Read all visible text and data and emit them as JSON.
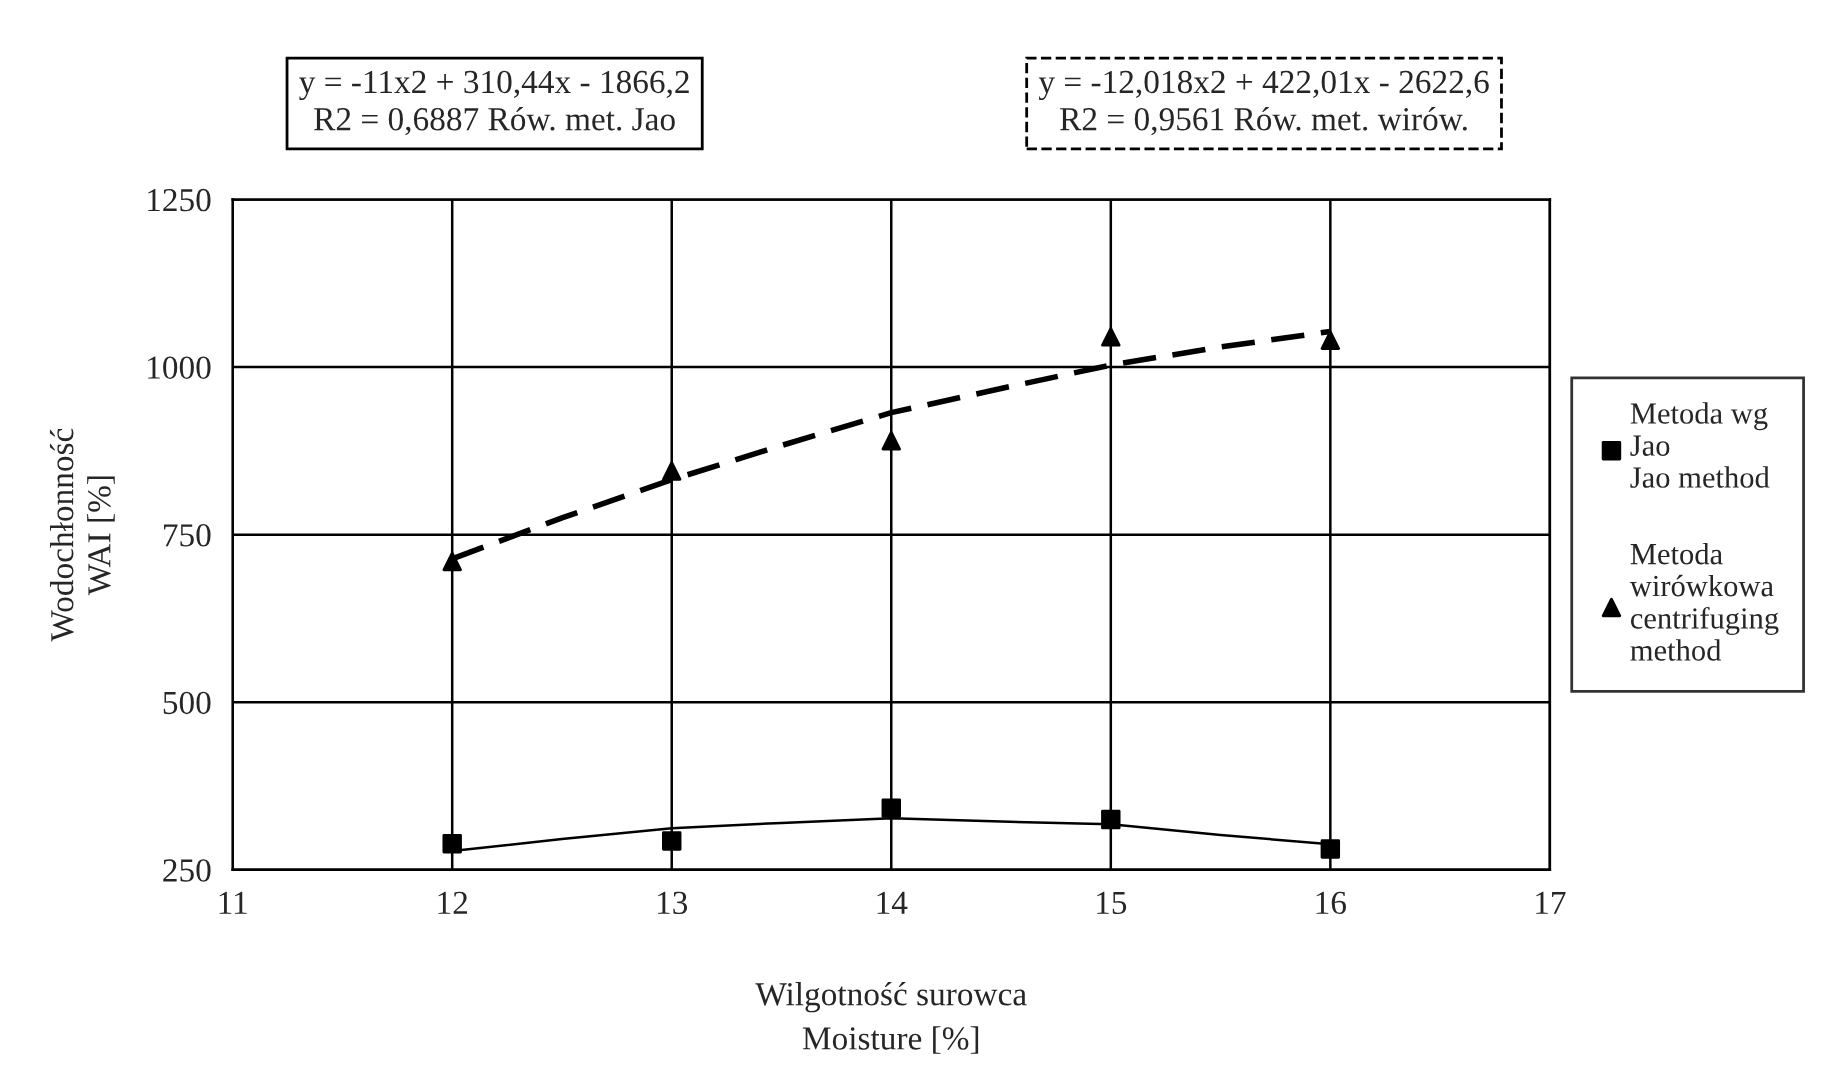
{
  "chart_data": {
    "type": "scatter",
    "xlabel": "Wilgotność surowca\nMoisture [%]",
    "ylabel": "Wodochłonność\nWAI [%]",
    "x": [
      12,
      13,
      14,
      15,
      16
    ],
    "series": [
      {
        "name": "Metoda wg\nJao\nJao method",
        "color": "#000000",
        "marker": "square",
        "values": [
          289,
          293,
          342,
          325,
          281
        ]
      },
      {
        "name": "Metoda\nwirówkowa\ncentrifuging\nmethod",
        "color": "#000000",
        "marker": "triangle",
        "values": [
          710,
          845,
          890,
          1045,
          1040
        ]
      },
      {
        "type": "line",
        "color": "#000000",
        "line_style": "solid",
        "marker": "none",
        "x": [
          12,
          12.5,
          13,
          13.5,
          14,
          14.5,
          15,
          15.5,
          16
        ],
        "values": [
          278,
          296,
          312,
          320,
          327,
          322,
          318,
          302,
          288
        ]
      },
      {
        "type": "line",
        "color": "#000000",
        "line_style": "dashed",
        "marker": "none",
        "x": [
          12,
          12.5,
          13,
          13.5,
          14,
          14.5,
          15,
          15.5,
          16
        ],
        "values": [
          714,
          775,
          832,
          883,
          932,
          968,
          1003,
          1030,
          1053
        ]
      }
    ],
    "annotations": [
      "y = -11x2 + 310,44x - 1866,2\nR2 = 0,6887 Rów. met. Jao",
      "y = -12,018x2 + 422,01x - 2622,6\nR2 = 0,9561 Rów. met. wirów."
    ],
    "xlim": [
      11,
      17
    ],
    "xticks": [
      11,
      12,
      13,
      14,
      15,
      16,
      17
    ],
    "ylim": [
      250,
      1250
    ],
    "yticks": [
      250,
      500,
      750,
      1000,
      1250
    ],
    "grid": true,
    "legend": "right"
  }
}
